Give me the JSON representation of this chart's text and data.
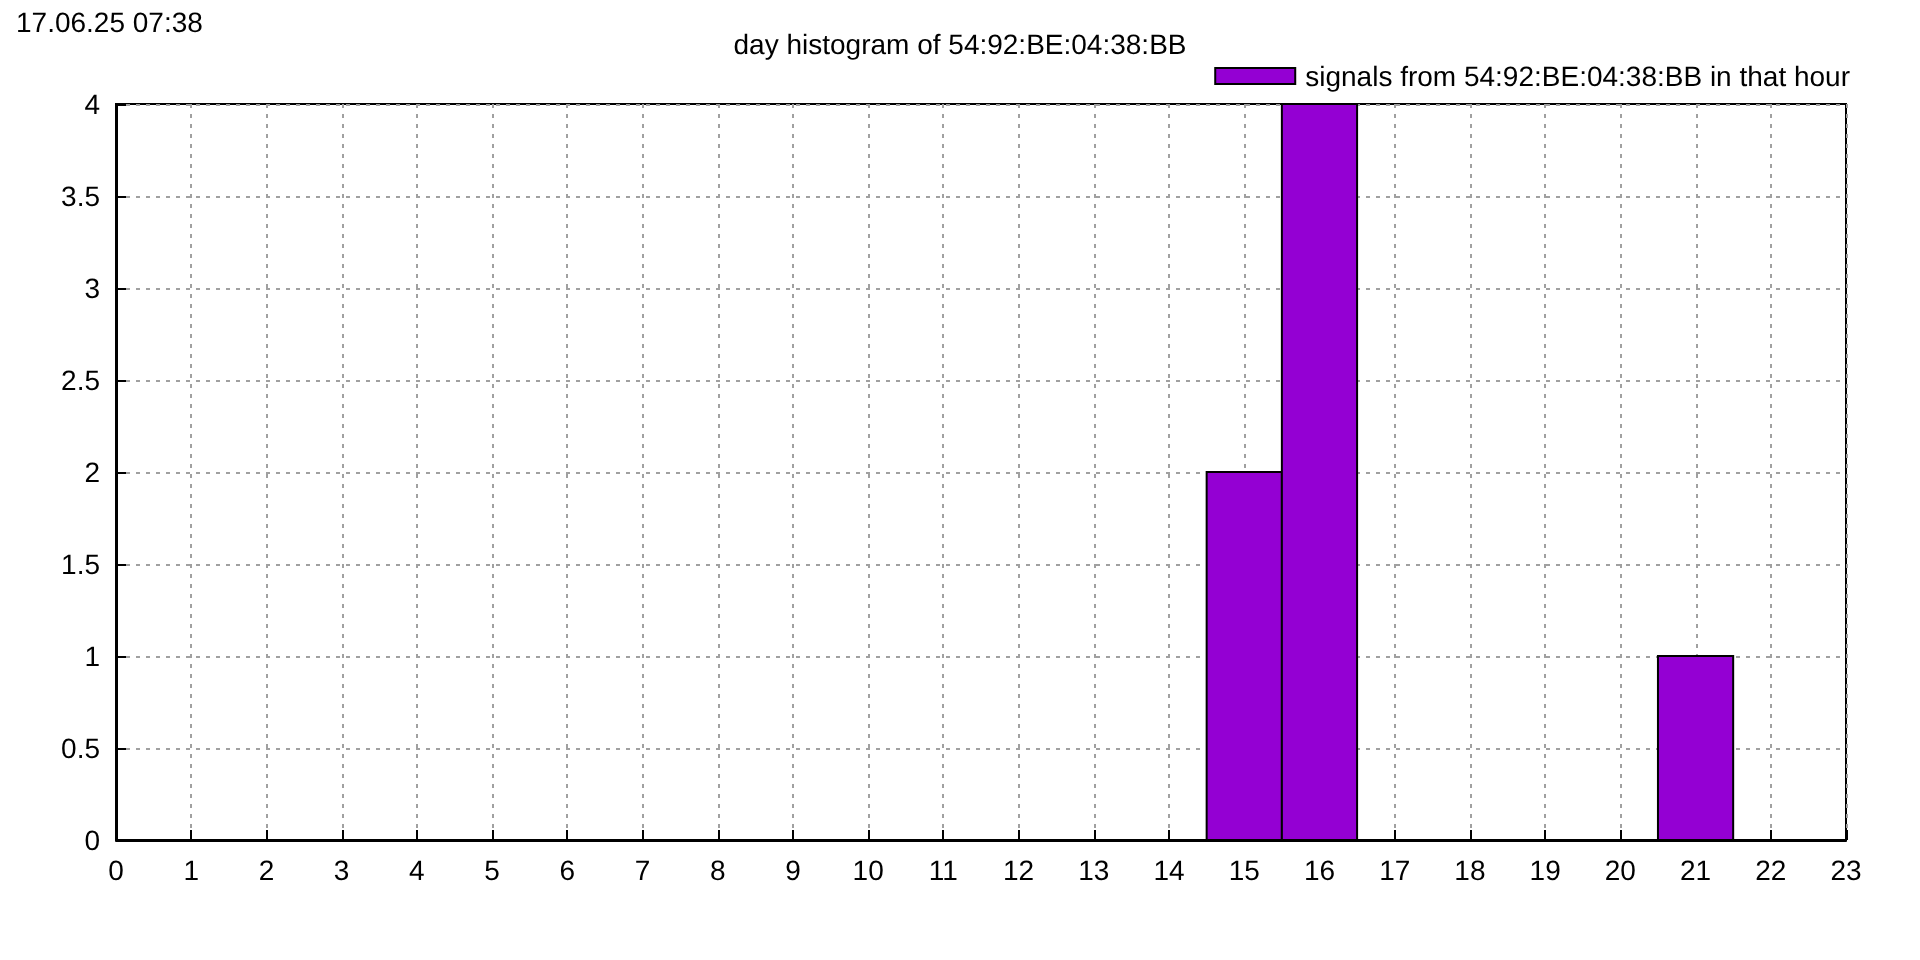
{
  "chart_data": {
    "type": "histogram",
    "title": "day histogram of 54:92:BE:04:38:BB",
    "annotations": [
      "17.06.25 07:38"
    ],
    "series": [
      {
        "name": "signals from 54:92:BE:04:38:BB in that hour",
        "color": "#9400d3",
        "values": [
          2,
          4,
          0,
          0,
          0,
          0,
          1
        ]
      }
    ],
    "bins": [
      14.5,
      15.5,
      16.5,
      17.5,
      18.5,
      19.5,
      20.5,
      21.5
    ],
    "xlim": [
      0,
      23
    ],
    "xticks": [
      0,
      1,
      2,
      3,
      4,
      5,
      6,
      7,
      8,
      9,
      10,
      11,
      12,
      13,
      14,
      15,
      16,
      17,
      18,
      19,
      20,
      21,
      22,
      23
    ],
    "ylim": [
      0,
      4
    ],
    "yticks": [
      0,
      0.5,
      1,
      1.5,
      2,
      2.5,
      3,
      3.5,
      4
    ],
    "grid": true,
    "legend": "top right"
  }
}
